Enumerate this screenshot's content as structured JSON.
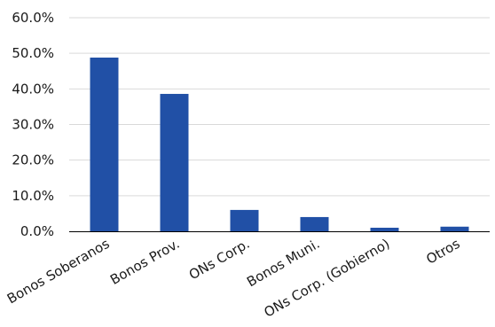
{
  "chart_data": {
    "type": "bar",
    "categories": [
      "Bonos Soberanos",
      "Bonos Prov.",
      "ONs Corp.",
      "Bonos Muni.",
      "ONs Corp. (Gobierno)",
      "Otros"
    ],
    "values": [
      48.8,
      38.6,
      6.0,
      4.0,
      1.0,
      1.3
    ],
    "y_unit": "%",
    "ylim": [
      0,
      60
    ],
    "y_ticks": [
      0,
      10,
      20,
      30,
      40,
      50,
      60
    ],
    "y_tick_labels": [
      "0.0%",
      "10.0%",
      "20.0%",
      "30.0%",
      "40.0%",
      "50.0%",
      "60.0%"
    ],
    "title": "",
    "xlabel": "",
    "ylabel": "",
    "grid": true,
    "legend": "none",
    "bar_color": "#2150a6"
  }
}
